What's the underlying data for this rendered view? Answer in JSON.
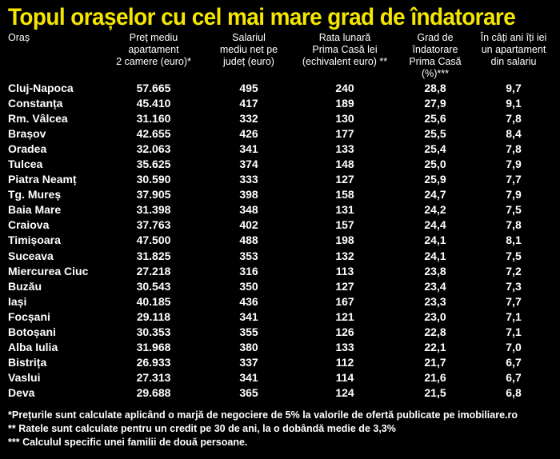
{
  "title": "Topul orașelor cu cel mai mare grad de îndatorare",
  "columns": [
    "Oraș",
    "Preț mediu\napartament\n2 camere (euro)*",
    "Salariul\nmediu net pe\njudeț (euro)",
    "Rata lunară\nPrima Casă lei\n(echivalent euro) **",
    "Grad de\nîndatorare\nPrima Casă (%)***",
    "În câți ani îți iei\nun apartament\ndin salariu"
  ],
  "rows": [
    [
      "Cluj-Napoca",
      "57.665",
      "495",
      "240",
      "28,8",
      "9,7"
    ],
    [
      "Constanța",
      "45.410",
      "417",
      "189",
      "27,9",
      "9,1"
    ],
    [
      "Rm. Vâlcea",
      "31.160",
      "332",
      "130",
      "25,6",
      "7,8"
    ],
    [
      "Brașov",
      "42.655",
      "426",
      "177",
      "25,5",
      "8,4"
    ],
    [
      "Oradea",
      "32.063",
      "341",
      "133",
      "25,4",
      "7,8"
    ],
    [
      "Tulcea",
      "35.625",
      "374",
      "148",
      "25,0",
      "7,9"
    ],
    [
      "Piatra Neamț",
      "30.590",
      "333",
      "127",
      "25,9",
      "7,7"
    ],
    [
      "Tg. Mureș",
      "37.905",
      "398",
      "158",
      "24,7",
      "7,9"
    ],
    [
      "Baia Mare",
      "31.398",
      "348",
      "131",
      "24,2",
      "7,5"
    ],
    [
      "Craiova",
      "37.763",
      "402",
      "157",
      "24,4",
      "7,8"
    ],
    [
      "Timișoara",
      "47.500",
      "488",
      "198",
      "24,1",
      "8,1"
    ],
    [
      "Suceava",
      "31.825",
      "353",
      "132",
      "24,1",
      "7,5"
    ],
    [
      "Miercurea Ciuc",
      "27.218",
      "316",
      "113",
      "23,8",
      "7,2"
    ],
    [
      "Buzău",
      "30.543",
      "350",
      "127",
      "23,4",
      "7,3"
    ],
    [
      "Iași",
      "40.185",
      "436",
      "167",
      "23,3",
      "7,7"
    ],
    [
      "Focșani",
      "29.118",
      "341",
      "121",
      "23,0",
      "7,1"
    ],
    [
      "Botoșani",
      "30.353",
      "355",
      "126",
      "22,8",
      "7,1"
    ],
    [
      "Alba Iulia",
      "31.968",
      "380",
      "133",
      "22,1",
      "7,0"
    ],
    [
      "Bistrița",
      "26.933",
      "337",
      "112",
      "21,7",
      "6,7"
    ],
    [
      "Vaslui",
      "27.313",
      "341",
      "114",
      "21,6",
      "6,7"
    ],
    [
      "Deva",
      "29.688",
      "365",
      "124",
      "21,5",
      "6,8"
    ]
  ],
  "footnotes": [
    "*Prețurile sunt calculate aplicând o marjă de negociere de 5% la valorile de ofertă publicate pe imobiliare.ro",
    "** Ratele sunt calculate pentru un credit pe 30 de ani, la o dobândă medie de 3,3%",
    "*** Calculul specific unei familii de două persoane."
  ],
  "colors": {
    "background": "#000000",
    "title": "#f5e600",
    "text": "#ffffff"
  }
}
